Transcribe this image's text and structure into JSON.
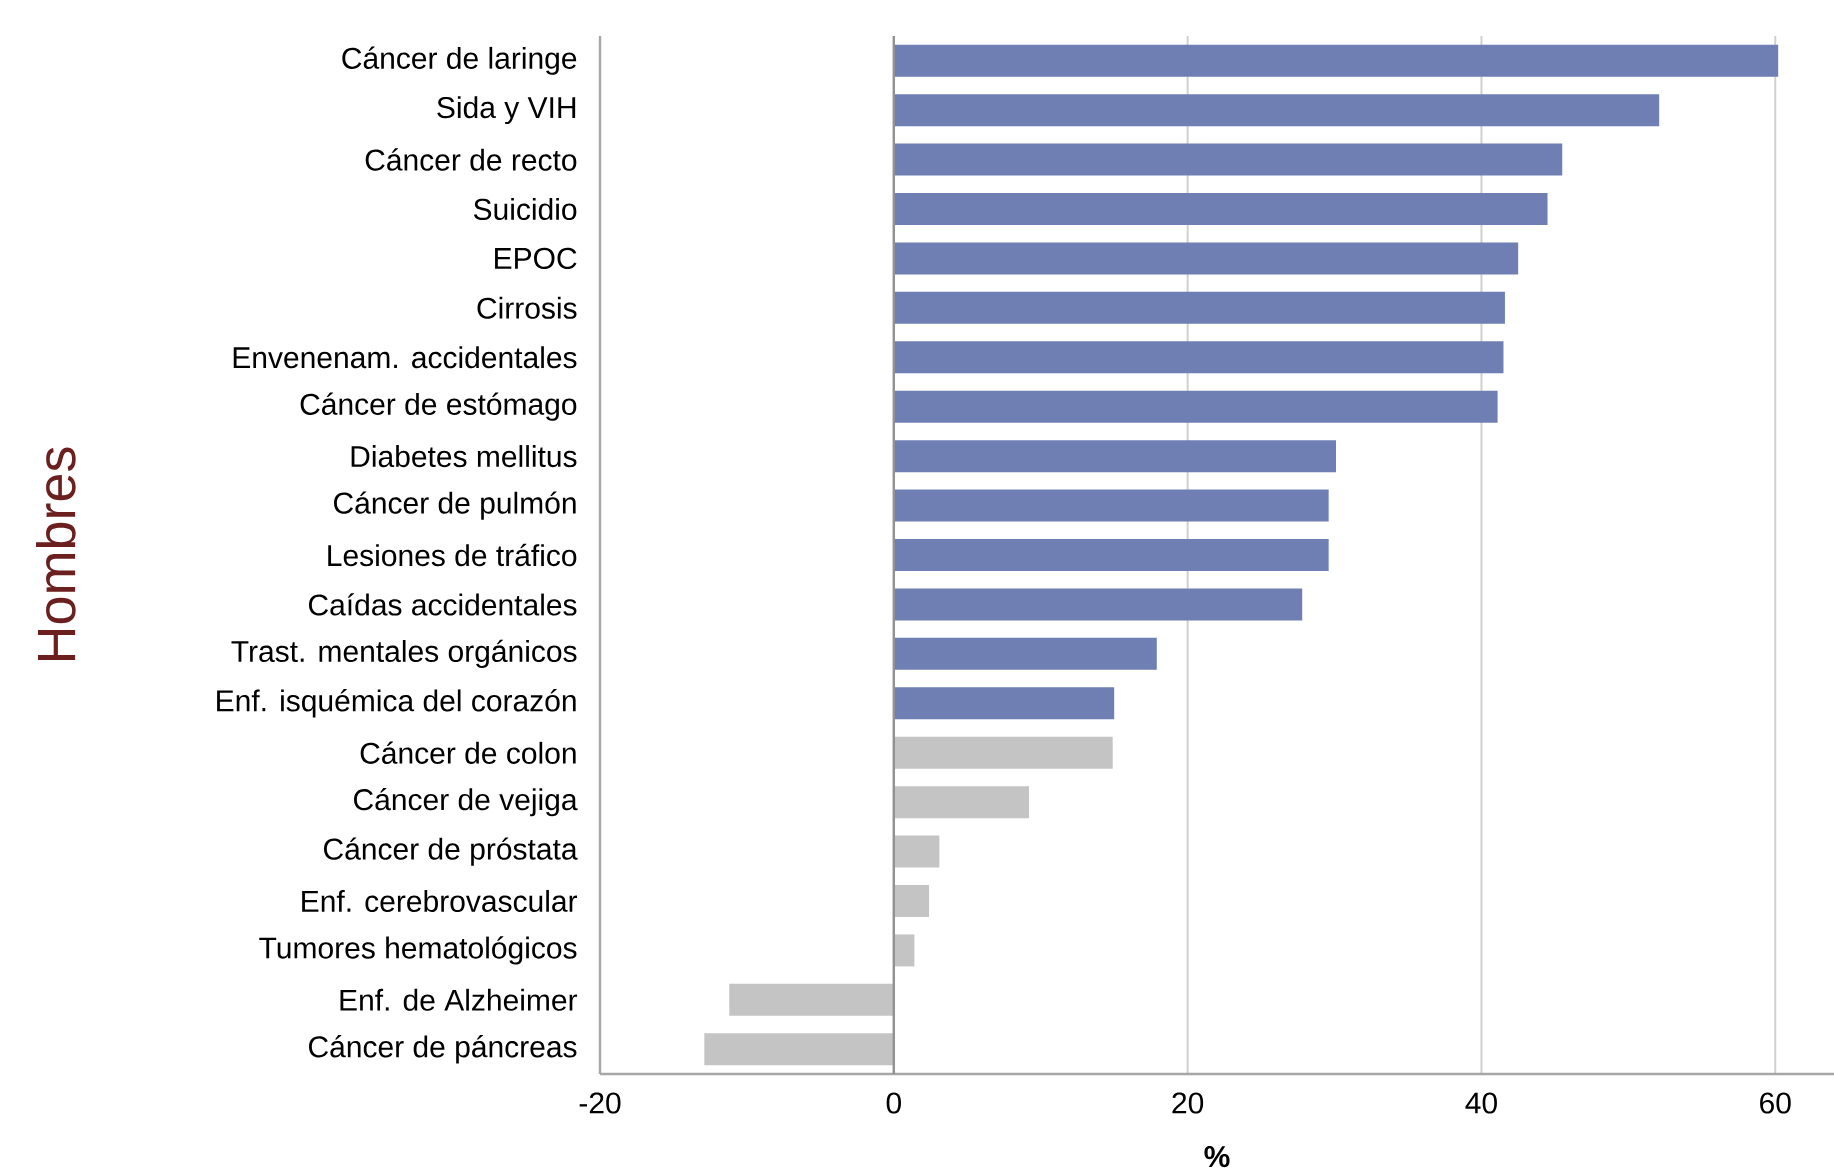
{
  "chart_data": {
    "type": "bar",
    "orientation": "horizontal",
    "xlabel": "%",
    "ylabel": "Hombres",
    "categories": [
      "Cáncer de laringe",
      "Sida y VIH",
      "Cáncer de recto",
      "Suicidio",
      "EPOC",
      "Cirrosis",
      "Envenenam. accidentales",
      "Cáncer de estómago",
      "Diabetes mellitus",
      "Cáncer de pulmón",
      "Lesiones de tráfico",
      "Caídas accidentales",
      "Trast. mentales orgánicos",
      "Enf. isquémica del corazón",
      "Cáncer de colon",
      "Cáncer de vejiga",
      "Cáncer de próstata",
      "Enf. cerebrovascular",
      "Tumores hematológicos",
      "Enf. de Alzheimer",
      "Cáncer de páncreas"
    ],
    "values": [
      60.2,
      52.1,
      45.5,
      44.5,
      42.5,
      41.6,
      41.5,
      41.1,
      30.1,
      29.6,
      29.6,
      27.8,
      17.9,
      15.0,
      14.9,
      9.2,
      3.1,
      2.4,
      1.4,
      -11.2,
      -12.9
    ],
    "colors": [
      "#6f7eb3",
      "#6f7eb3",
      "#6f7eb3",
      "#6f7eb3",
      "#6f7eb3",
      "#6f7eb3",
      "#6f7eb3",
      "#6f7eb3",
      "#6f7eb3",
      "#6f7eb3",
      "#6f7eb3",
      "#6f7eb3",
      "#6f7eb3",
      "#6f7eb3",
      "#c4c4c4",
      "#c4c4c4",
      "#c4c4c4",
      "#c4c4c4",
      "#c4c4c4",
      "#c4c4c4",
      "#c4c4c4"
    ],
    "xlim": [
      -20,
      64
    ],
    "xticks": [
      -20,
      0,
      20,
      40,
      60
    ],
    "grid": "x"
  }
}
